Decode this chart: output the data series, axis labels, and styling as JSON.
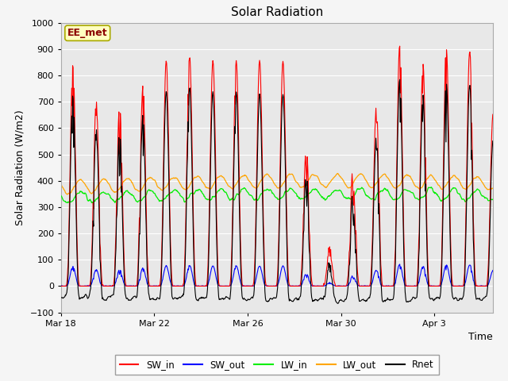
{
  "title": "Solar Radiation",
  "xlabel": "Time",
  "ylabel": "Solar Radiation (W/m2)",
  "ylim": [
    -100,
    1000
  ],
  "xlim_days": [
    0,
    18.5
  ],
  "x_tick_labels": [
    "Mar 18",
    "Mar 22",
    "Mar 26",
    "Mar 30",
    "Apr 3"
  ],
  "x_tick_positions": [
    0,
    4,
    8,
    12,
    16
  ],
  "annotation_text": "EE_met",
  "annotation_color": "#8B0000",
  "annotation_bg": "#FFFFC0",
  "annotation_edge": "#AAAA00",
  "bg_color": "#F5F5F5",
  "plot_bg": "#E8E8E8",
  "grid_color": "#FFFFFF",
  "line_colors": {
    "SW_in": "#FF0000",
    "SW_out": "#0000FF",
    "LW_in": "#00EE00",
    "LW_out": "#FFA500",
    "Rnet": "#000000"
  },
  "legend_labels": [
    "SW_in",
    "SW_out",
    "LW_in",
    "LW_out",
    "Rnet"
  ],
  "title_fontsize": 11,
  "tick_fontsize": 8,
  "label_fontsize": 9
}
